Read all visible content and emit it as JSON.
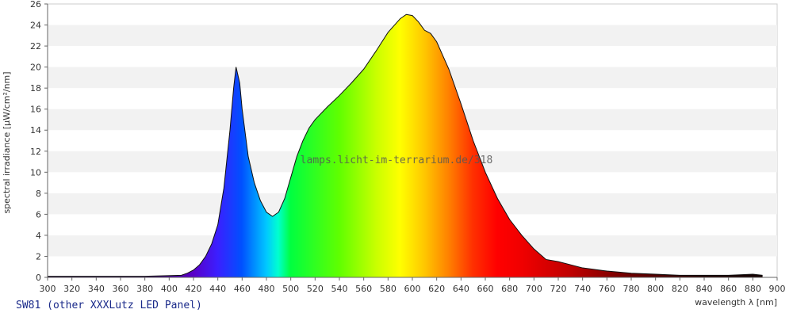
{
  "chart_data": {
    "type": "area",
    "caption": "SW81 (other XXXLutz LED Panel)",
    "watermark": "lamps.licht-im-terrarium.de/318",
    "xlabel": "wavelength λ [nm]",
    "ylabel": "spectral irradiance [µW/cm²/nm]",
    "xlim": [
      300,
      900
    ],
    "ylim": [
      0,
      26
    ],
    "x_ticks": [
      300,
      320,
      340,
      360,
      380,
      400,
      420,
      440,
      460,
      480,
      500,
      520,
      540,
      560,
      580,
      600,
      620,
      640,
      660,
      680,
      700,
      720,
      740,
      760,
      780,
      800,
      820,
      840,
      860,
      880,
      900
    ],
    "y_ticks": [
      0,
      2,
      4,
      6,
      8,
      10,
      12,
      14,
      16,
      18,
      20,
      22,
      24,
      26
    ],
    "grid": "horizontal alternating bands",
    "fill": "visible-spectrum color gradient",
    "x": [
      300,
      380,
      410,
      415,
      420,
      425,
      430,
      435,
      440,
      445,
      450,
      453,
      455,
      458,
      460,
      465,
      470,
      475,
      480,
      485,
      490,
      495,
      500,
      505,
      510,
      515,
      520,
      530,
      540,
      550,
      560,
      570,
      580,
      590,
      595,
      600,
      605,
      610,
      615,
      620,
      630,
      640,
      650,
      660,
      670,
      680,
      690,
      700,
      710,
      720,
      730,
      740,
      760,
      780,
      800,
      820,
      840,
      860,
      880,
      888
    ],
    "y": [
      0.1,
      0.1,
      0.2,
      0.4,
      0.7,
      1.2,
      2.0,
      3.2,
      5.0,
      8.5,
      14.0,
      18.0,
      20.0,
      18.5,
      16.0,
      11.5,
      9.0,
      7.3,
      6.2,
      5.8,
      6.2,
      7.5,
      9.5,
      11.5,
      13.0,
      14.2,
      15.0,
      16.2,
      17.3,
      18.5,
      19.8,
      21.5,
      23.3,
      24.6,
      25.0,
      24.9,
      24.3,
      23.5,
      23.2,
      22.4,
      19.8,
      16.5,
      13.0,
      10.0,
      7.5,
      5.5,
      4.0,
      2.7,
      1.7,
      1.5,
      1.2,
      0.9,
      0.6,
      0.4,
      0.3,
      0.2,
      0.2,
      0.2,
      0.3,
      0.2
    ]
  }
}
